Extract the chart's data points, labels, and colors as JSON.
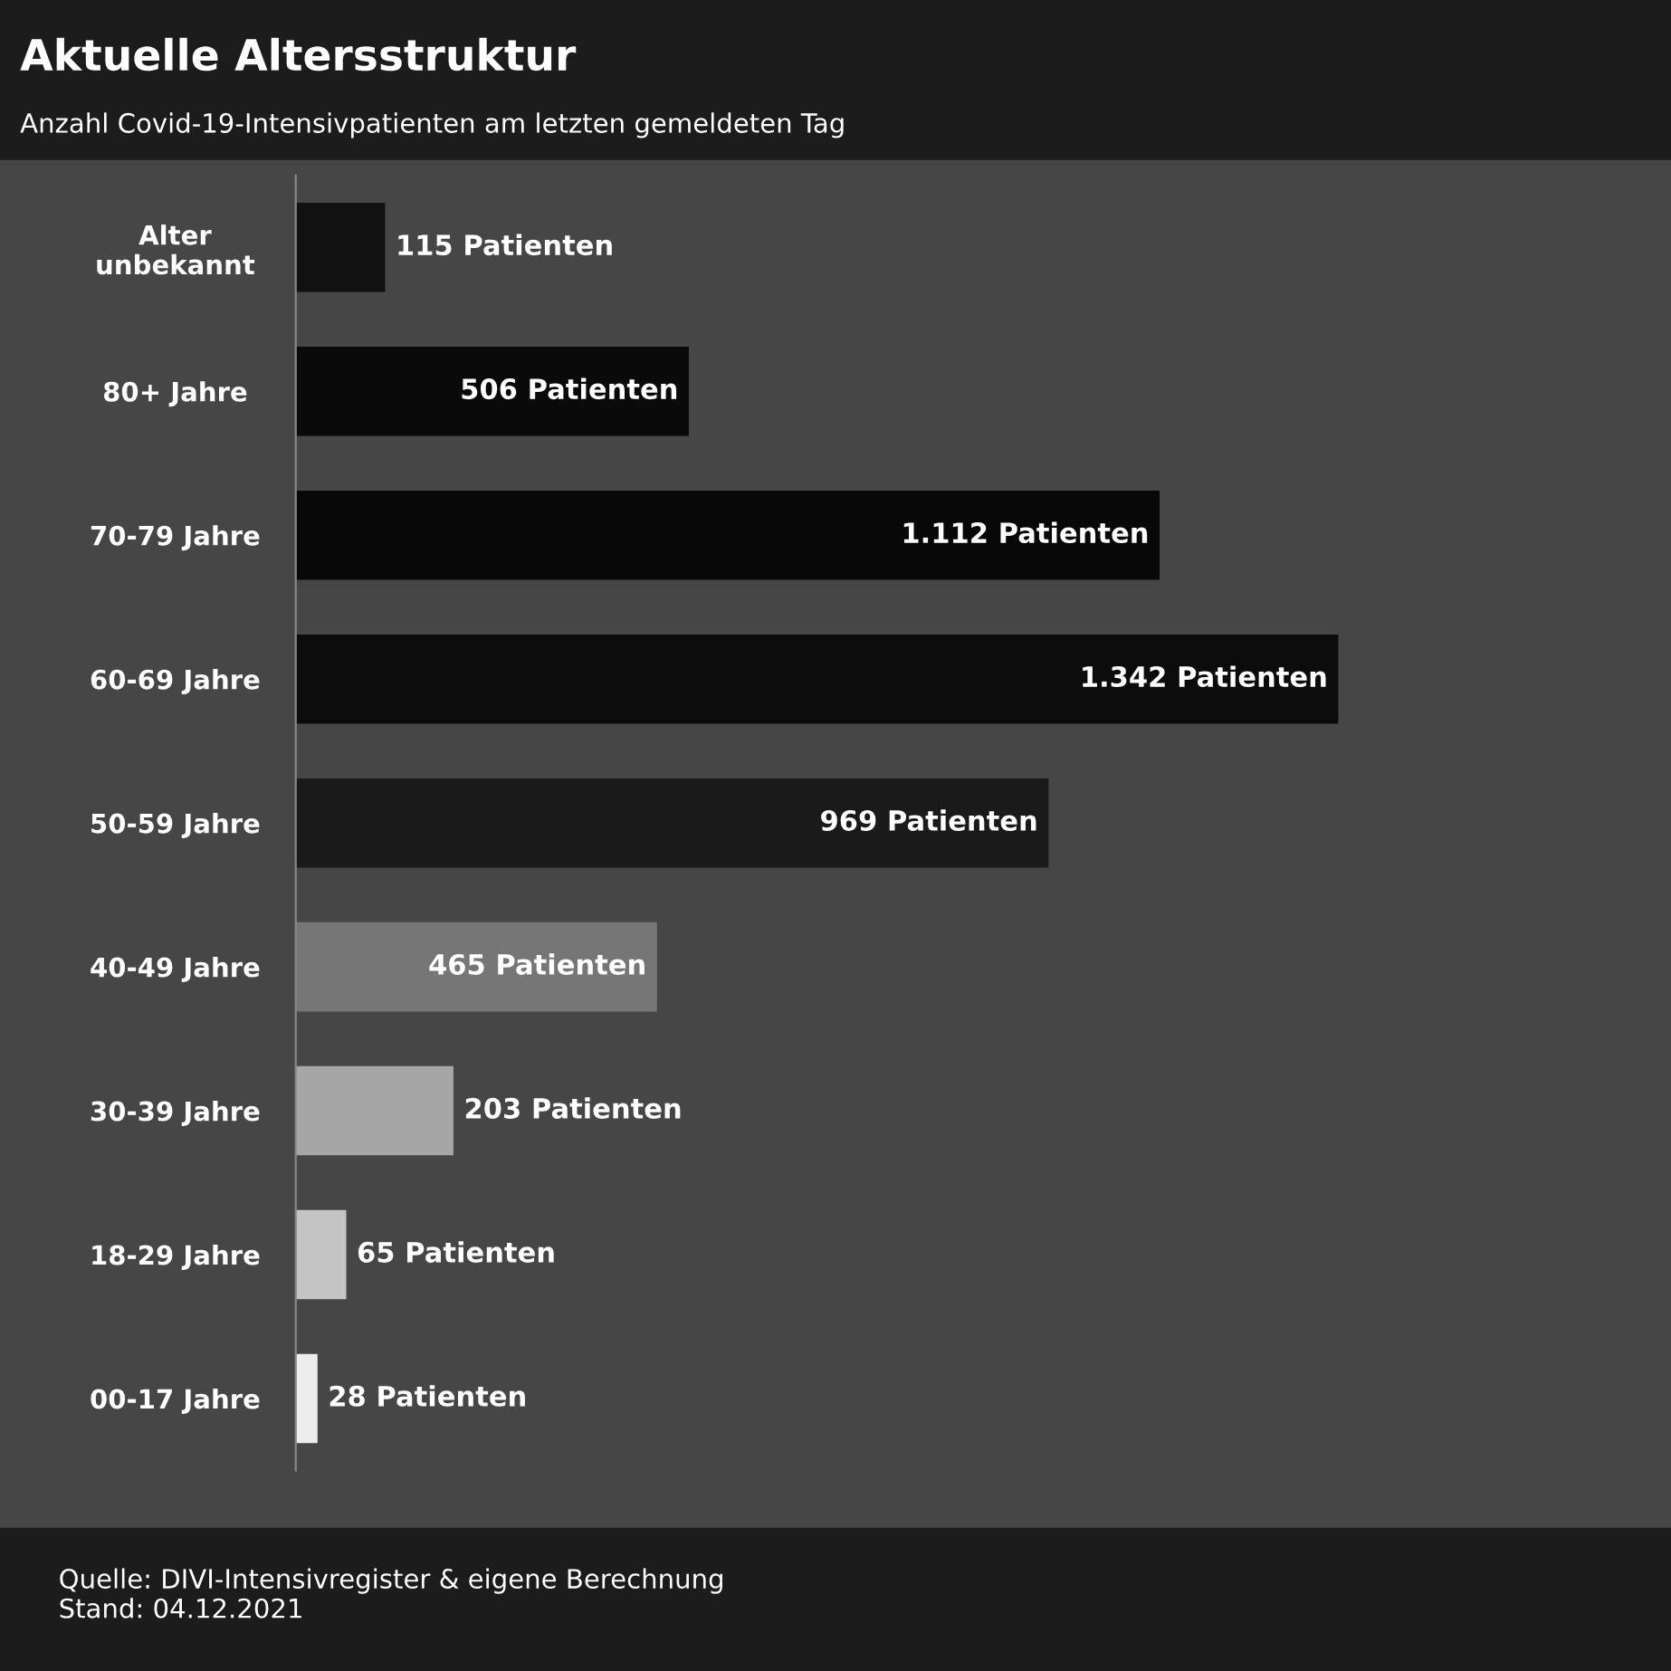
{
  "chart_data": {
    "type": "bar",
    "orientation": "horizontal",
    "title": "Aktuelle Altersstruktur",
    "subtitle": "Anzahl Covid-19-Intensivpatienten am letzten gemeldeten Tag",
    "categories": [
      "Alter\nunbekannt",
      "80+ Jahre",
      "70-79 Jahre",
      "60-69 Jahre",
      "50-59 Jahre",
      "40-49 Jahre",
      "30-39 Jahre",
      "18-29 Jahre",
      "00-17 Jahre"
    ],
    "values": [
      115,
      506,
      1112,
      1342,
      969,
      465,
      203,
      65,
      28
    ],
    "colors": [
      "#111111",
      "#0a0a0a",
      "#080808",
      "#0c0c0c",
      "#1a1a1a",
      "#767676",
      "#a6a6a6",
      "#c4c4c4",
      "#ececec"
    ],
    "value_labels": [
      "115 Patienten",
      "506 Patienten",
      "1.112 Patienten",
      "1.342 Patienten",
      "969 Patienten",
      "465 Patienten",
      "203 Patienten",
      "65 Patienten",
      "28 Patienten"
    ],
    "annotations": [
      "Quelle: DIVI-Intensivregister & eigene Berechnung\nStand: 04.12.2021"
    ],
    "grid": false,
    "legend": false
  }
}
